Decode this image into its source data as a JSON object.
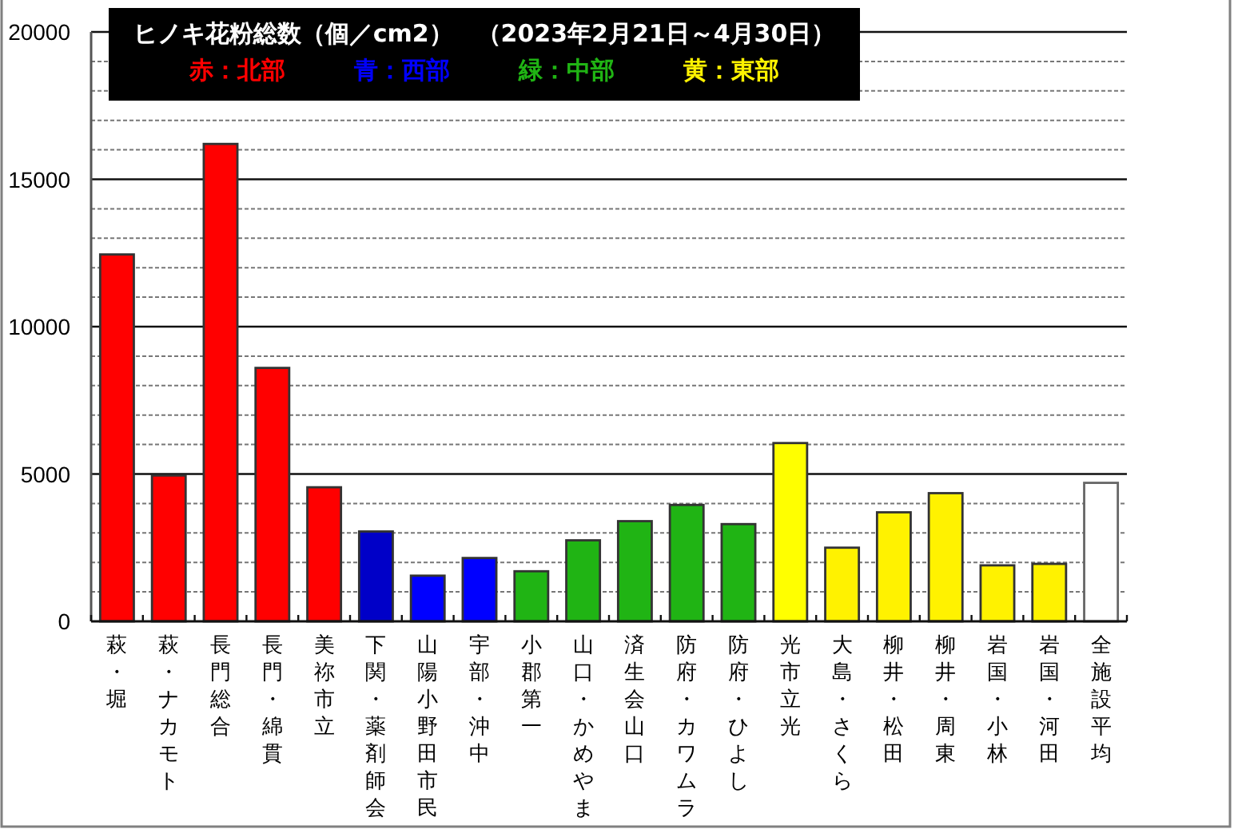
{
  "chart_data": {
    "type": "bar",
    "title": "ヒノキ花粉総数（個／cm2）　（2023年2月21日～4月30日）",
    "categories": [
      "萩・堀",
      "萩・ナカモト",
      "長門総合",
      "長門・綿貫",
      "美祢市立",
      "下関・薬剤師会",
      "山陽小野田市民",
      "宇部・沖中",
      "小郡第一",
      "山口・かめやま",
      "済生会山口",
      "防府・カワムラ",
      "防府・ひよし",
      "光市立光",
      "大島・さくら",
      "柳井・松田",
      "柳井・周東",
      "岩国・小林",
      "岩国・河田",
      "全施設平均"
    ],
    "stacked": true,
    "series": [
      {
        "name": "赤：北部",
        "color": "#ff0000",
        "values": [
          12450,
          4950,
          16200,
          8600,
          4550,
          null,
          null,
          null,
          null,
          null,
          null,
          null,
          null,
          null,
          null,
          null,
          null,
          null,
          null,
          null
        ]
      },
      {
        "name": "青：西部",
        "color": "#0000ff",
        "colors": [
          null,
          null,
          null,
          null,
          null,
          "#0000c8",
          "#0000ff",
          "#0000ff",
          null,
          null,
          null,
          null,
          null,
          null,
          null,
          null,
          null,
          null,
          null,
          null
        ],
        "values": [
          null,
          null,
          null,
          null,
          null,
          3050,
          1550,
          2150,
          null,
          null,
          null,
          null,
          null,
          null,
          null,
          null,
          null,
          null,
          null,
          null
        ]
      },
      {
        "name": "緑：中部",
        "color": "#20b414",
        "values": [
          null,
          null,
          null,
          null,
          null,
          null,
          null,
          null,
          1700,
          2750,
          3400,
          3950,
          3300,
          null,
          null,
          null,
          null,
          null,
          null,
          null
        ]
      },
      {
        "name": "黄：東部",
        "color": "#fff200",
        "colors": [
          null,
          null,
          null,
          null,
          null,
          null,
          null,
          null,
          null,
          null,
          null,
          null,
          null,
          "#ffff00",
          "#fff200",
          "#fff200",
          "#fff200",
          "#fff200",
          "#fff200",
          null
        ],
        "values": [
          null,
          null,
          null,
          null,
          null,
          null,
          null,
          null,
          null,
          null,
          null,
          null,
          null,
          6050,
          2500,
          3700,
          4350,
          1900,
          1950,
          null
        ]
      },
      {
        "color": "#ffffff",
        "values": [
          null,
          null,
          null,
          null,
          null,
          null,
          null,
          null,
          null,
          null,
          null,
          null,
          null,
          null,
          null,
          null,
          null,
          null,
          null,
          4700
        ]
      }
    ],
    "ylim": [
      0,
      20000
    ],
    "yticks": [
      0,
      {
        "value": 1000,
        "label": null
      },
      {
        "value": 2000,
        "label": null
      },
      {
        "value": 3000,
        "label": null
      },
      {
        "value": 4000,
        "label": null
      },
      5000,
      {
        "value": 6000,
        "label": null
      },
      {
        "value": 7000,
        "label": null
      },
      {
        "value": 8000,
        "label": null
      },
      {
        "value": 9000,
        "label": null
      },
      10000,
      {
        "value": 11000,
        "label": null
      },
      {
        "value": 12000,
        "label": null
      },
      {
        "value": 13000,
        "label": null
      },
      {
        "value": 14000,
        "label": null
      },
      15000,
      {
        "value": 16000,
        "label": null
      },
      {
        "value": 17000,
        "label": null
      },
      {
        "value": 18000,
        "label": null
      },
      {
        "value": 19000,
        "label": null
      },
      20000
    ],
    "grid": "y",
    "legend": "top left"
  }
}
